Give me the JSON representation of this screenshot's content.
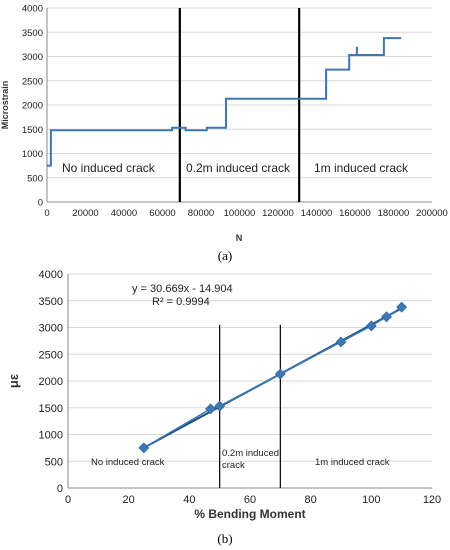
{
  "chart_data": [
    {
      "type": "line",
      "xlabel": "N",
      "ylabel": "Microstrain",
      "xlim": [
        0,
        200000
      ],
      "ylim": [
        0,
        4000
      ],
      "xticks": [
        "0",
        "20000",
        "40000",
        "60000",
        "80000",
        "100000",
        "120000",
        "140000",
        "160000",
        "180000",
        "200000"
      ],
      "yticks": [
        "0",
        "500",
        "1000",
        "1500",
        "2000",
        "2500",
        "3000",
        "3500",
        "4000"
      ],
      "grid": "horizontal",
      "color": "#3c78b4",
      "series": [
        {
          "x": [
            0,
            2000,
            2000,
            65000,
            65000,
            72000,
            72000,
            83000,
            83000,
            93000,
            93000,
            145000,
            145000,
            157000,
            157000,
            161000,
            161000,
            161000,
            175000,
            175000,
            184000
          ],
          "y": [
            750,
            750,
            1480,
            1480,
            1530,
            1530,
            1480,
            1480,
            1530,
            1530,
            2130,
            2130,
            2730,
            2730,
            3030,
            3030,
            3200,
            3030,
            3030,
            3380,
            3380
          ]
        }
      ],
      "dividers_x": [
        69000,
        131000
      ],
      "annotations": [
        "No induced crack",
        "0.2m induced crack",
        "1m induced crack"
      ],
      "caption": "(a)"
    },
    {
      "type": "scatter",
      "xlabel": "% Bending Moment",
      "ylabel": "με",
      "xlim": [
        0,
        120
      ],
      "ylim": [
        0,
        4000
      ],
      "xticks": [
        "0",
        "20",
        "40",
        "60",
        "80",
        "100",
        "120"
      ],
      "yticks": [
        "0",
        "500",
        "1000",
        "1500",
        "2000",
        "2500",
        "3000",
        "3500",
        "4000"
      ],
      "grid": "horizontal",
      "color": "#3c78b4",
      "points": {
        "x": [
          25,
          47,
          50,
          70,
          90,
          100,
          105,
          110
        ],
        "y": [
          750,
          1480,
          1530,
          2130,
          2730,
          3030,
          3200,
          3380
        ]
      },
      "trendline": {
        "slope": 30.669,
        "intercept": -14.904,
        "x_range": [
          25,
          110
        ]
      },
      "equation": "y = 30.669x - 14.904",
      "r_squared": "R² = 0.9994",
      "dividers_x": [
        50,
        70
      ],
      "annotations": [
        "No induced crack",
        "0.2m induced crack",
        "1m induced crack"
      ],
      "caption": "(b)"
    }
  ]
}
